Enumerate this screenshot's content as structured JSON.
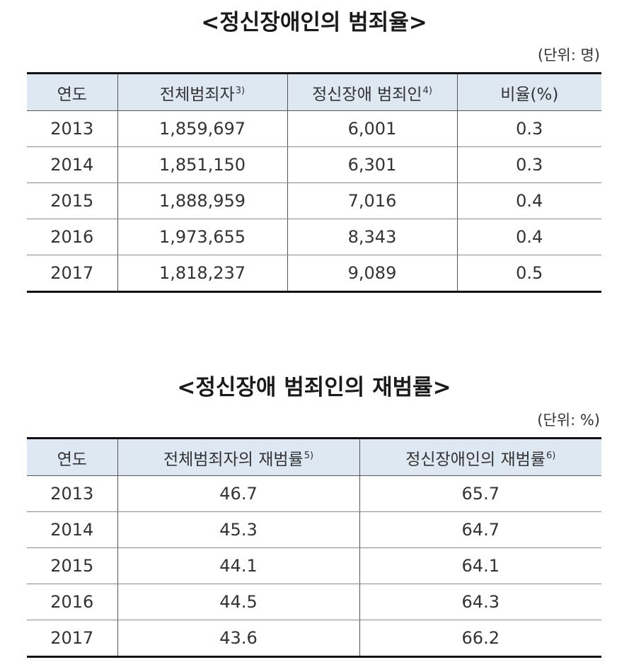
{
  "table1": {
    "title": "<정신장애인의 범죄율>",
    "unit": "(단위: 명)",
    "headers": [
      {
        "label": "연도",
        "note": ""
      },
      {
        "label": "전체범죄자",
        "note": "3)"
      },
      {
        "label": "정신장애 범죄인",
        "note": "4)"
      },
      {
        "label": "비율(%)",
        "note": ""
      }
    ],
    "rows": [
      [
        "2013",
        "1,859,697",
        "6,001",
        "0.3"
      ],
      [
        "2014",
        "1,851,150",
        "6,301",
        "0.3"
      ],
      [
        "2015",
        "1,888,959",
        "7,016",
        "0.4"
      ],
      [
        "2016",
        "1,973,655",
        "8,343",
        "0.4"
      ],
      [
        "2017",
        "1,818,237",
        "9,089",
        "0.5"
      ]
    ]
  },
  "table2": {
    "title": "<정신장애 범죄인의 재범률>",
    "unit": "(단위: %)",
    "headers": [
      {
        "label": "연도",
        "note": ""
      },
      {
        "label": "전체범죄자의 재범률",
        "note": "5)"
      },
      {
        "label": "정신장애인의 재범률",
        "note": "6)"
      }
    ],
    "rows": [
      [
        "2013",
        "46.7",
        "65.7"
      ],
      [
        "2014",
        "45.3",
        "64.7"
      ],
      [
        "2015",
        "44.1",
        "64.1"
      ],
      [
        "2016",
        "44.5",
        "64.3"
      ],
      [
        "2017",
        "43.6",
        "66.2"
      ]
    ]
  }
}
